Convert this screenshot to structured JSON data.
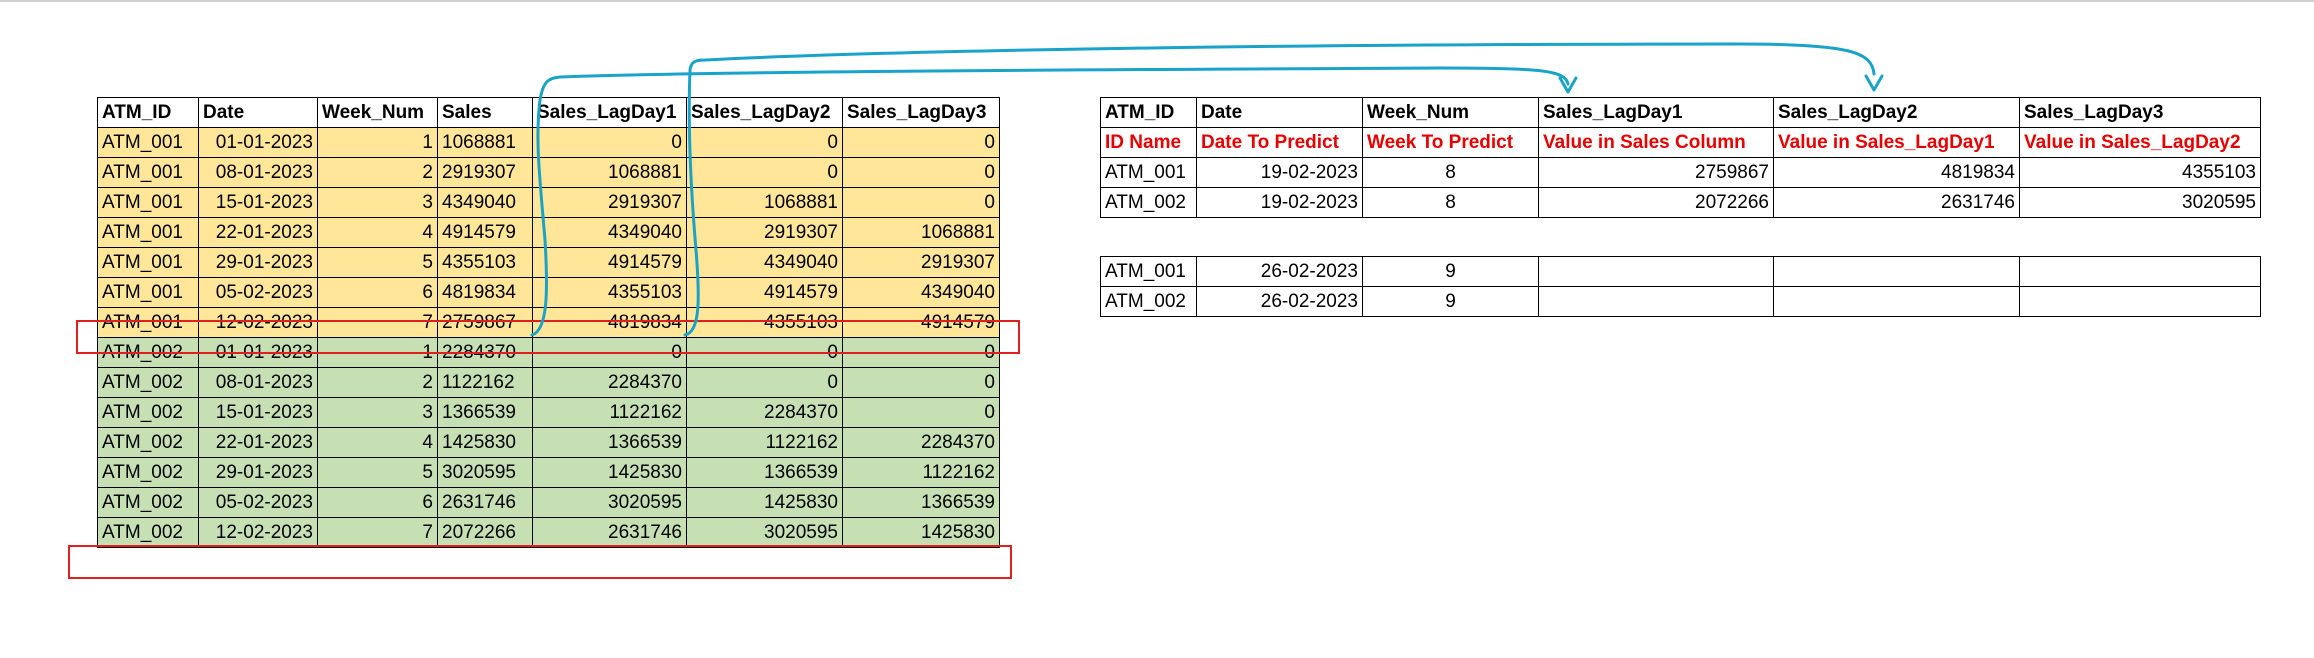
{
  "colors": {
    "group1": "#ffe699",
    "group2": "#c6e0b4",
    "highlight_box": "#e02020",
    "arrow": "#1aa3c8",
    "red_text": "#e60000"
  },
  "left_table": {
    "headers": [
      "ATM_ID",
      "Date",
      "Week_Num",
      "Sales",
      "Sales_LagDay1",
      "Sales_LagDay2",
      "Sales_LagDay3"
    ],
    "rows": [
      [
        "ATM_001",
        "01-01-2023",
        "1",
        "1068881",
        "0",
        "0",
        "0"
      ],
      [
        "ATM_001",
        "08-01-2023",
        "2",
        "2919307",
        "1068881",
        "0",
        "0"
      ],
      [
        "ATM_001",
        "15-01-2023",
        "3",
        "4349040",
        "2919307",
        "1068881",
        "0"
      ],
      [
        "ATM_001",
        "22-01-2023",
        "4",
        "4914579",
        "4349040",
        "2919307",
        "1068881"
      ],
      [
        "ATM_001",
        "29-01-2023",
        "5",
        "4355103",
        "4914579",
        "4349040",
        "2919307"
      ],
      [
        "ATM_001",
        "05-02-2023",
        "6",
        "4819834",
        "4355103",
        "4914579",
        "4349040"
      ],
      [
        "ATM_001",
        "12-02-2023",
        "7",
        "2759867",
        "4819834",
        "4355103",
        "4914579"
      ],
      [
        "ATM_002",
        "01-01-2023",
        "1",
        "2284370",
        "0",
        "0",
        "0"
      ],
      [
        "ATM_002",
        "08-01-2023",
        "2",
        "1122162",
        "2284370",
        "0",
        "0"
      ],
      [
        "ATM_002",
        "15-01-2023",
        "3",
        "1366539",
        "1122162",
        "2284370",
        "0"
      ],
      [
        "ATM_002",
        "22-01-2023",
        "4",
        "1425830",
        "1366539",
        "1122162",
        "2284370"
      ],
      [
        "ATM_002",
        "29-01-2023",
        "5",
        "3020595",
        "1425830",
        "1366539",
        "1122162"
      ],
      [
        "ATM_002",
        "05-02-2023",
        "6",
        "2631746",
        "3020595",
        "1425830",
        "1366539"
      ],
      [
        "ATM_002",
        "12-02-2023",
        "7",
        "2072266",
        "2631746",
        "3020595",
        "1425830"
      ]
    ]
  },
  "right_table": {
    "headers": [
      "ATM_ID",
      "Date",
      "Week_Num",
      "Sales_LagDay1",
      "Sales_LagDay2",
      "Sales_LagDay3"
    ],
    "descriptions": [
      "ID Name",
      "Date To Predict",
      "Week To Predict",
      "Value in Sales Column",
      "Value in Sales_LagDay1",
      "Value in Sales_LagDay2"
    ],
    "rows": [
      [
        "ATM_001",
        "19-02-2023",
        "8",
        "2759867",
        "4819834",
        "4355103"
      ],
      [
        "ATM_002",
        "19-02-2023",
        "8",
        "2072266",
        "2631746",
        "3020595"
      ]
    ]
  },
  "future_table": {
    "rows": [
      [
        "ATM_001",
        "26-02-2023",
        "9",
        "",
        "",
        ""
      ],
      [
        "ATM_002",
        "26-02-2023",
        "9",
        "",
        "",
        ""
      ]
    ]
  }
}
